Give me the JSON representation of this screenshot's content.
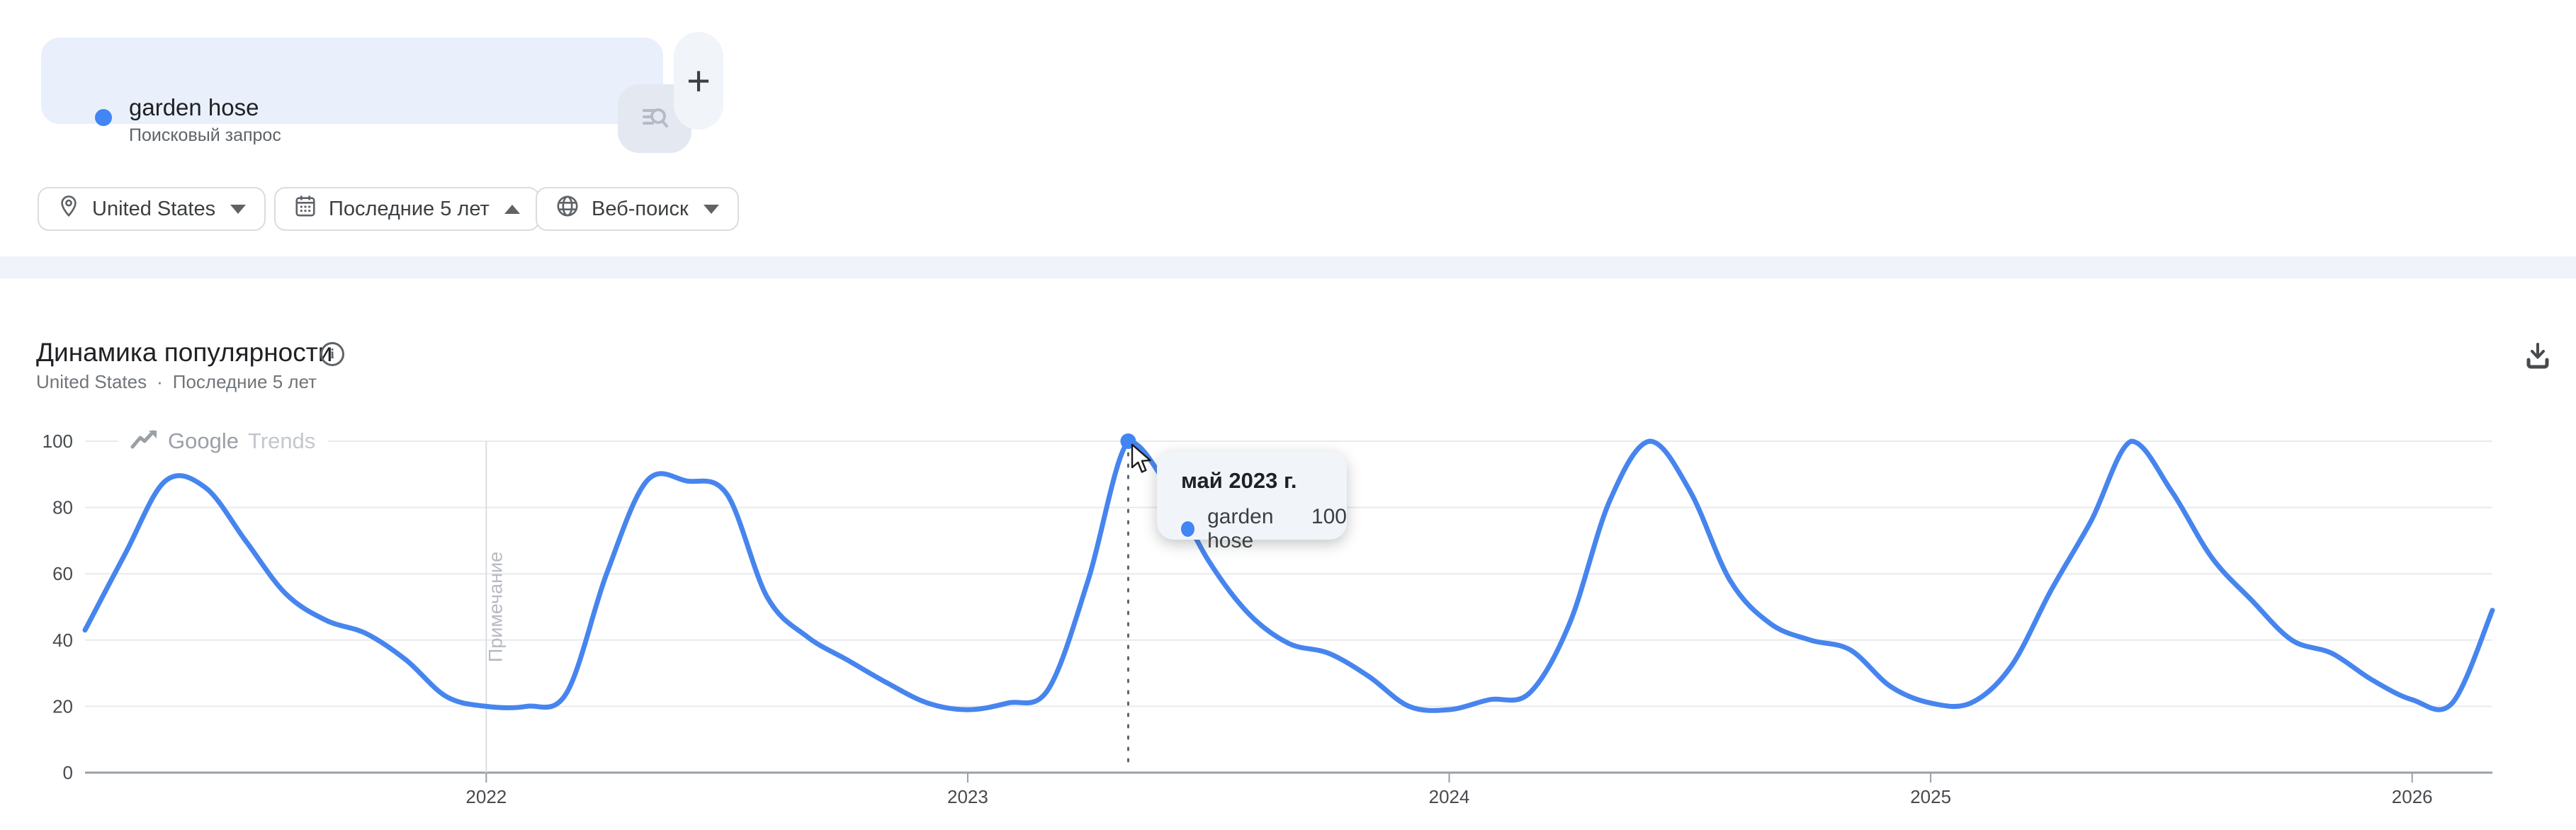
{
  "term_card": {
    "term": "garden hose",
    "term_type": "Поисковый запрос",
    "add_button_label": "+"
  },
  "filters": {
    "region": {
      "label": "United States"
    },
    "time": {
      "label": "Последние 5 лет"
    },
    "search_type": {
      "label": "Веб-поиск"
    }
  },
  "panel": {
    "title": "Динамика популярности",
    "subtitle_region": "United States",
    "subtitle_separator": "·",
    "subtitle_period": "Последние 5 лет",
    "info_glyph": "i"
  },
  "watermark": {
    "part1": "Google",
    "part2": "Trends"
  },
  "tooltip": {
    "title": "май 2023 г.",
    "series_label": "garden hose",
    "value": 100
  },
  "colors": {
    "line": "#4785ee",
    "dot": "#4285f4",
    "term_dot": "#4285f4",
    "card_bg": "#e9f0fc",
    "band_bg": "#f0f3f9",
    "tooltip_bg": "#f1f4f9"
  },
  "chart_data": {
    "type": "line",
    "title": "Динамика популярности",
    "series_name": "garden hose",
    "region": "United States",
    "period": "Последние 5 лет",
    "ylim": [
      0,
      100
    ],
    "yticks": [
      0,
      20,
      40,
      60,
      80,
      100
    ],
    "grid": "horizontal",
    "legend_position": "none",
    "x_months": [
      "2021-03",
      "2021-04",
      "2021-05",
      "2021-06",
      "2021-07",
      "2021-08",
      "2021-09",
      "2021-10",
      "2021-11",
      "2021-12",
      "2022-01",
      "2022-02",
      "2022-03",
      "2022-04",
      "2022-05",
      "2022-06",
      "2022-07",
      "2022-08",
      "2022-09",
      "2022-10",
      "2022-11",
      "2022-12",
      "2023-01",
      "2023-02",
      "2023-03",
      "2023-04",
      "2023-05",
      "2023-06",
      "2023-07",
      "2023-08",
      "2023-09",
      "2023-10",
      "2023-11",
      "2023-12",
      "2024-01",
      "2024-02",
      "2024-03",
      "2024-04",
      "2024-05",
      "2024-06",
      "2024-07",
      "2024-08",
      "2024-09",
      "2024-10",
      "2024-11",
      "2024-12",
      "2025-01",
      "2025-02",
      "2025-03",
      "2025-04",
      "2025-05",
      "2025-06",
      "2025-07",
      "2025-08",
      "2025-09",
      "2025-10",
      "2025-11",
      "2025-12",
      "2026-01",
      "2026-02",
      "2026-03"
    ],
    "values": [
      43,
      66,
      88,
      86,
      70,
      54,
      46,
      42,
      34,
      23,
      20,
      20,
      24,
      60,
      88,
      88,
      84,
      53,
      41,
      34,
      27,
      21,
      19,
      21,
      25,
      58,
      100,
      86,
      64,
      48,
      39,
      36,
      29,
      20,
      19,
      22,
      24,
      45,
      82,
      100,
      85,
      58,
      45,
      40,
      37,
      26,
      21,
      21,
      32,
      55,
      76,
      100,
      85,
      65,
      52,
      40,
      36,
      28,
      22,
      21,
      49
    ],
    "xticks": [
      {
        "label": "2022",
        "index": 10
      },
      {
        "label": "2023",
        "index": 22
      },
      {
        "label": "2024",
        "index": 34
      },
      {
        "label": "2025",
        "index": 46
      },
      {
        "label": "2026",
        "index": 58
      }
    ],
    "annotation": {
      "index": 10,
      "label": "Примечание"
    },
    "highlight": {
      "index": 26,
      "value": 100,
      "date_label": "май 2023 г.",
      "series": "garden hose"
    }
  }
}
